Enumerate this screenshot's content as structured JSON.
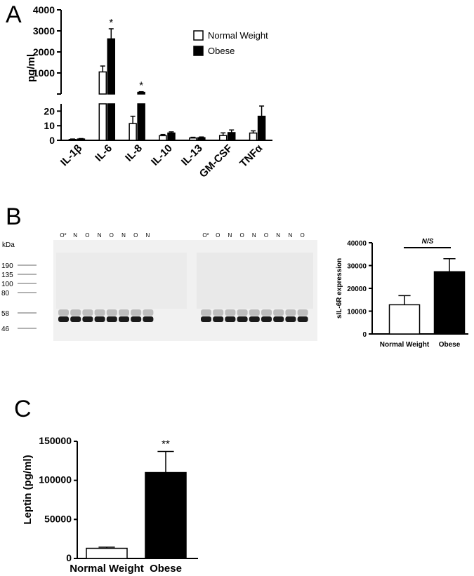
{
  "panel_labels": {
    "a": "A",
    "b": "B",
    "c": "C"
  },
  "colors": {
    "normal": "#ffffff",
    "obese": "#000000",
    "outline": "#000000"
  },
  "chart_data": [
    {
      "panel": "A",
      "type": "bar",
      "ylabel": "pg/ml",
      "broken_axis": true,
      "upper_ticks": [
        1000,
        2000,
        3000,
        4000
      ],
      "lower_ticks": [
        0,
        10,
        20
      ],
      "categories": [
        "IL-1β",
        "IL-6",
        "IL-8",
        "IL-10",
        "IL-13",
        "GM-CSF",
        "TNFα"
      ],
      "legend": [
        "Normal Weight",
        "Obese"
      ],
      "legend_position": "top-right",
      "series": [
        {
          "name": "Normal Weight",
          "values": [
            0.6,
            1050,
            11.5,
            3.2,
            1.6,
            3.3,
            5.0
          ],
          "errors": [
            0.3,
            280,
            5.0,
            0.8,
            0.5,
            1.8,
            1.5
          ]
        },
        {
          "name": "Obese",
          "values": [
            0.9,
            2620,
            80,
            5.0,
            1.8,
            5.3,
            16.5
          ],
          "errors": [
            0.3,
            480,
            30,
            0.8,
            0.5,
            1.8,
            7.0
          ]
        }
      ],
      "annotations": [
        {
          "category": "IL-6",
          "text": "*"
        },
        {
          "category": "IL-8",
          "text": "*"
        }
      ]
    },
    {
      "panel": "B",
      "type": "bar",
      "ylabel": "sIL-6R expression",
      "ylim": [
        0,
        40000
      ],
      "yticks": [
        0,
        10000,
        20000,
        30000,
        40000
      ],
      "categories": [
        "Normal Weight",
        "Obese"
      ],
      "values": [
        12800,
        27300
      ],
      "errors": [
        4000,
        5700
      ],
      "annotation": "N/S"
    },
    {
      "panel": "C",
      "type": "bar",
      "ylabel": "Leptin (pg/ml)",
      "ylim": [
        0,
        150000
      ],
      "yticks": [
        0,
        50000,
        100000,
        150000
      ],
      "categories": [
        "Normal Weight",
        "Obese"
      ],
      "values": [
        13000,
        110000
      ],
      "errors": [
        1500,
        27000
      ],
      "annotation": "**"
    }
  ],
  "blot": {
    "kda_label": "kDa",
    "markers": [
      "190",
      "135",
      "100",
      "80",
      "58",
      "46"
    ],
    "gel1_lanes": [
      "O*",
      "N",
      "O",
      "N",
      "O",
      "N",
      "O",
      "N"
    ],
    "gel2_lanes": [
      "O*",
      "O",
      "N",
      "O",
      "N",
      "O",
      "N",
      "N",
      "O"
    ]
  }
}
